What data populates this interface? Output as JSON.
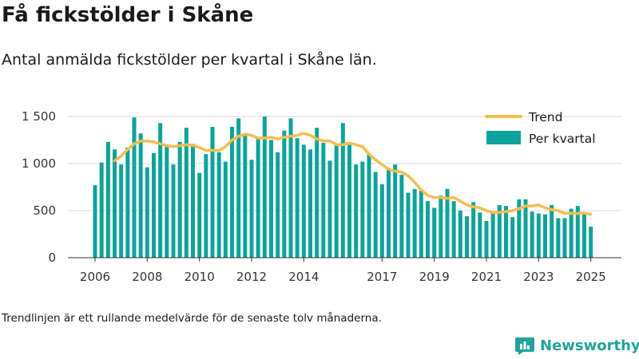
{
  "title": "Få fickstölder i Skåne",
  "subtitle": "Antal anmälda fickstölder per kvartal i Skåne län.",
  "caption": "Trendlinjen är ett rullande medelvärde för de senaste tolv månaderna.",
  "brand": {
    "name": "Newsworthy",
    "icon": "newsworthy-logo-icon"
  },
  "colors": {
    "bars": "#0ea39a",
    "trend": "#f7bd4f",
    "grid": "#d9d9d9",
    "axis": "#333333",
    "brand": "#21a39b"
  },
  "chart_data": {
    "type": "bar",
    "x_type": "quarter",
    "start_quarter": "2006 Q1",
    "ylim": [
      0,
      1650
    ],
    "y_ticks": [
      0,
      500,
      1000,
      1500
    ],
    "y_tick_labels": [
      "0",
      "500",
      "1 000",
      "1 500"
    ],
    "x_ticks": [
      2006,
      2008,
      2010,
      2012,
      2014,
      2017,
      2019,
      2021,
      2023,
      2025
    ],
    "x_tick_labels": [
      "2006",
      "2008",
      "2010",
      "2012",
      "2014",
      "2017",
      "2019",
      "2021",
      "2023",
      "2025"
    ],
    "grid": true,
    "legend_position": "top-right",
    "series": [
      {
        "name": "Per kvartal",
        "type": "bar",
        "values": [
          770,
          1010,
          1230,
          1150,
          990,
          1170,
          1490,
          1320,
          960,
          1110,
          1430,
          1180,
          990,
          1230,
          1380,
          1210,
          900,
          1100,
          1390,
          1120,
          1020,
          1390,
          1480,
          1310,
          1040,
          1270,
          1500,
          1250,
          1120,
          1350,
          1480,
          1270,
          1200,
          1150,
          1380,
          1220,
          1030,
          1190,
          1430,
          1200,
          990,
          1020,
          1100,
          910,
          780,
          940,
          990,
          880,
          690,
          730,
          710,
          600,
          530,
          660,
          730,
          600,
          500,
          440,
          590,
          480,
          390,
          470,
          560,
          550,
          430,
          620,
          620,
          490,
          470,
          460,
          560,
          420,
          420,
          520,
          550,
          460,
          330
        ]
      },
      {
        "name": "Trend",
        "type": "line",
        "points": [
          {
            "q": 3,
            "v": 1030
          },
          {
            "q": 4,
            "v": 1080
          },
          {
            "q": 5,
            "v": 1150
          },
          {
            "q": 6,
            "v": 1210
          },
          {
            "q": 7,
            "v": 1240
          },
          {
            "q": 8,
            "v": 1240
          },
          {
            "q": 9,
            "v": 1230
          },
          {
            "q": 10,
            "v": 1210
          },
          {
            "q": 11,
            "v": 1190
          },
          {
            "q": 12,
            "v": 1180
          },
          {
            "q": 13,
            "v": 1190
          },
          {
            "q": 14,
            "v": 1200
          },
          {
            "q": 15,
            "v": 1195
          },
          {
            "q": 16,
            "v": 1170
          },
          {
            "q": 17,
            "v": 1140
          },
          {
            "q": 18,
            "v": 1140
          },
          {
            "q": 19,
            "v": 1140
          },
          {
            "q": 20,
            "v": 1180
          },
          {
            "q": 21,
            "v": 1250
          },
          {
            "q": 22,
            "v": 1290
          },
          {
            "q": 23,
            "v": 1310
          },
          {
            "q": 24,
            "v": 1300
          },
          {
            "q": 25,
            "v": 1270
          },
          {
            "q": 26,
            "v": 1270
          },
          {
            "q": 27,
            "v": 1280
          },
          {
            "q": 28,
            "v": 1260
          },
          {
            "q": 29,
            "v": 1280
          },
          {
            "q": 30,
            "v": 1290
          },
          {
            "q": 31,
            "v": 1300
          },
          {
            "q": 32,
            "v": 1320
          },
          {
            "q": 33,
            "v": 1300
          },
          {
            "q": 34,
            "v": 1260
          },
          {
            "q": 35,
            "v": 1240
          },
          {
            "q": 36,
            "v": 1240
          },
          {
            "q": 37,
            "v": 1200
          },
          {
            "q": 38,
            "v": 1200
          },
          {
            "q": 39,
            "v": 1220
          },
          {
            "q": 40,
            "v": 1200
          },
          {
            "q": 41,
            "v": 1180
          },
          {
            "q": 42,
            "v": 1100
          },
          {
            "q": 43,
            "v": 1040
          },
          {
            "q": 44,
            "v": 990
          },
          {
            "q": 45,
            "v": 940
          },
          {
            "q": 46,
            "v": 920
          },
          {
            "q": 47,
            "v": 910
          },
          {
            "q": 48,
            "v": 870
          },
          {
            "q": 49,
            "v": 800
          },
          {
            "q": 50,
            "v": 720
          },
          {
            "q": 51,
            "v": 660
          },
          {
            "q": 52,
            "v": 640
          },
          {
            "q": 53,
            "v": 640
          },
          {
            "q": 54,
            "v": 630
          },
          {
            "q": 55,
            "v": 640
          },
          {
            "q": 56,
            "v": 600
          },
          {
            "q": 57,
            "v": 560
          },
          {
            "q": 58,
            "v": 540
          },
          {
            "q": 59,
            "v": 530
          },
          {
            "q": 60,
            "v": 500
          },
          {
            "q": 61,
            "v": 480
          },
          {
            "q": 62,
            "v": 480
          },
          {
            "q": 63,
            "v": 490
          },
          {
            "q": 64,
            "v": 500
          },
          {
            "q": 65,
            "v": 520
          },
          {
            "q": 66,
            "v": 550
          },
          {
            "q": 67,
            "v": 550
          },
          {
            "q": 68,
            "v": 560
          },
          {
            "q": 69,
            "v": 530
          },
          {
            "q": 70,
            "v": 510
          },
          {
            "q": 71,
            "v": 500
          },
          {
            "q": 72,
            "v": 470
          },
          {
            "q": 73,
            "v": 470
          },
          {
            "q": 74,
            "v": 470
          },
          {
            "q": 75,
            "v": 475
          },
          {
            "q": 76,
            "v": 460
          }
        ]
      }
    ]
  }
}
